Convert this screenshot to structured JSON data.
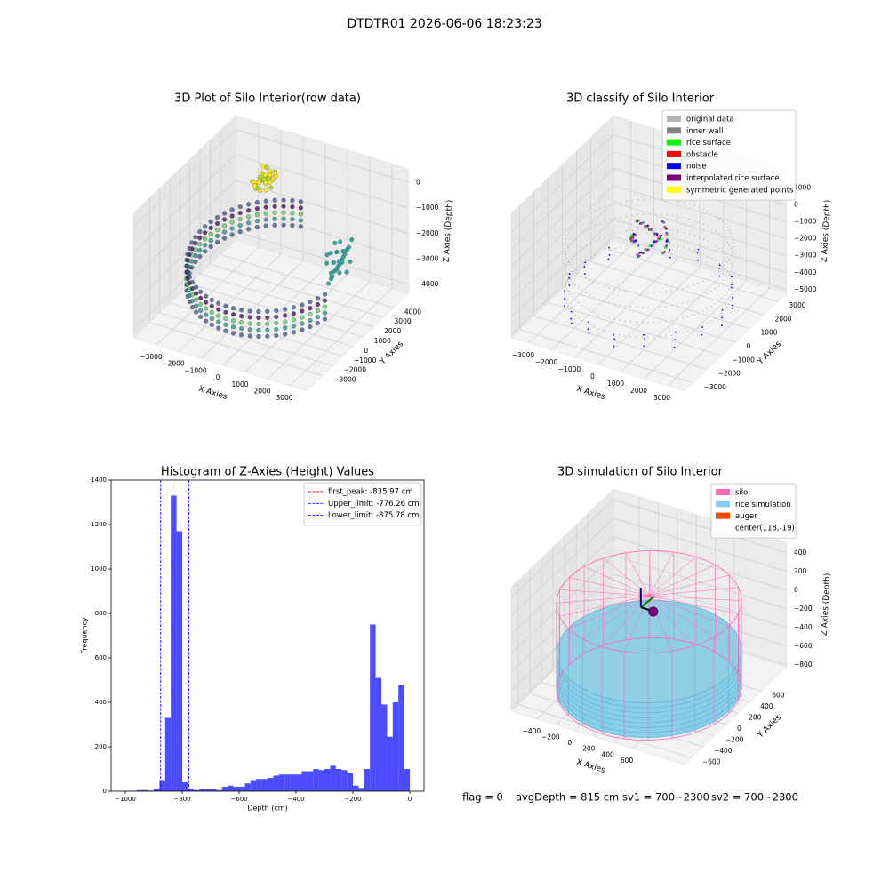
{
  "title": "DTDTR01 2026-06-06 18:23:23",
  "chart_data": [
    {
      "type": "scatter3d",
      "title": "3D Plot of Silo Interior(row data)",
      "x_label": "X Axies",
      "y_label": "Y Axies",
      "z_label": "Z Axies (Depth)",
      "xlim": [
        -4040,
        3760
      ],
      "ylim": [
        -4600,
        5500
      ],
      "zlim": [
        -4340,
        540
      ],
      "xticks": [
        {
          "value": -3000,
          "label": "−3000"
        },
        {
          "value": -2000,
          "label": "−2000"
        },
        {
          "value": -1000,
          "label": "−1000"
        },
        0,
        1000,
        2000,
        3000
      ],
      "yticks": [
        {
          "value": -3000,
          "label": "−3000"
        },
        {
          "value": -2000,
          "label": "−2000"
        },
        {
          "value": -1000,
          "label": "−1000"
        },
        0,
        1000,
        2000,
        3000,
        4000
      ],
      "zticks": [
        {
          "value": -4000,
          "label": "−4000"
        },
        {
          "value": -3000,
          "label": "−3000"
        },
        {
          "value": -2000,
          "label": "−2000"
        },
        {
          "value": -1000,
          "label": "−1000"
        },
        0
      ]
    },
    {
      "type": "scatter3d",
      "title": "3D classify of Silo Interior",
      "x_label": "X Axies",
      "y_label": "Y Axies",
      "z_label": "Z Axies (Depth)",
      "xlim": [
        -3750,
        3750
      ],
      "ylim": [
        -3600,
        3600
      ],
      "zlim": [
        -5220,
        2130
      ],
      "xticks": [
        {
          "value": -3000,
          "label": "−3000"
        },
        {
          "value": -2000,
          "label": "−2000"
        },
        {
          "value": -1000,
          "label": "−1000"
        },
        0,
        1000,
        2000,
        3000
      ],
      "yticks": [
        {
          "value": -3000,
          "label": "−3000"
        },
        {
          "value": -2000,
          "label": "−2000"
        },
        {
          "value": -1000,
          "label": "−1000"
        },
        0,
        1000,
        2000,
        3000
      ],
      "zticks": [
        {
          "value": -5000,
          "label": "−5000"
        },
        {
          "value": -4000,
          "label": "−4000"
        },
        {
          "value": -3000,
          "label": "−3000"
        },
        {
          "value": -2000,
          "label": "−2000"
        },
        {
          "value": -1000,
          "label": "−1000"
        },
        0,
        1000
      ],
      "legend_position": "upper right",
      "legend": [
        {
          "name": "original data",
          "color": "#b3b3b3"
        },
        {
          "name": "inner wall",
          "color": "#808080"
        },
        {
          "name": "rice surface",
          "color": "#00ff00"
        },
        {
          "name": "obstacle",
          "color": "#ff0000"
        },
        {
          "name": "noise",
          "color": "#0000ff"
        },
        {
          "name": "interpolated rice surface",
          "color": "#800080"
        },
        {
          "name": "symmetric generated points",
          "color": "#ffff00"
        }
      ]
    },
    {
      "type": "histogram",
      "title": "Histogram of Z-Axies (Height) Values",
      "x_label": "Depth (cm)",
      "y_label": "Frequency",
      "color": "#0000ff",
      "opacity": 0.7,
      "bins": [
        -1000,
        -980,
        -960,
        -940,
        -920,
        -900,
        -880,
        -860,
        -840,
        -820,
        -800,
        -780,
        -760,
        -740,
        -720,
        -700,
        -680,
        -660,
        -640,
        -620,
        -600,
        -580,
        -560,
        -540,
        -520,
        -500,
        -480,
        -460,
        -440,
        -420,
        -400,
        -380,
        -360,
        -340,
        -320,
        -300,
        -280,
        -260,
        -240,
        -220,
        -200,
        -180,
        -160,
        -140,
        -120,
        -100,
        -80,
        -60,
        -40,
        -20,
        0
      ],
      "counts": [
        2,
        2,
        5,
        5,
        3,
        10,
        50,
        330,
        1330,
        1170,
        40,
        10,
        5,
        8,
        8,
        8,
        5,
        20,
        25,
        20,
        20,
        35,
        50,
        55,
        55,
        60,
        70,
        75,
        75,
        75,
        75,
        90,
        90,
        100,
        95,
        100,
        115,
        100,
        95,
        80,
        25,
        15,
        100,
        750,
        510,
        390,
        245,
        400,
        480,
        100
      ],
      "xlim": [
        -1050,
        50
      ],
      "ylim": [
        0,
        1400
      ],
      "xticks": [
        {
          "value": -1000,
          "label": "−1000"
        },
        {
          "value": -800,
          "label": "−800"
        },
        {
          "value": -600,
          "label": "−600"
        },
        {
          "value": -400,
          "label": "−400"
        },
        {
          "value": -200,
          "label": "−200"
        },
        0
      ],
      "yticks": [
        0,
        200,
        400,
        600,
        800,
        1000,
        1200,
        1400
      ],
      "legend_position": "upper right",
      "lines": [
        {
          "name": "first_peak: -835.97 cm",
          "value": -835.97,
          "color": "#ff0000"
        },
        {
          "name": "Upper_limit: -776.26 cm",
          "value": -776.26,
          "color": "#0000ff"
        },
        {
          "name": "Lower_limit: -875.78 cm",
          "value": -875.78,
          "color": "#0000ff"
        }
      ]
    },
    {
      "type": "scatter3d",
      "title": "3D simulation of Silo Interior",
      "x_label": "X Axies",
      "y_label": "Y Axies",
      "z_label": "Z Axies (Depth)",
      "xlim": [
        -670,
        1150
      ],
      "ylim": [
        -720,
        1040
      ],
      "zlim": [
        -820,
        513
      ],
      "xticks": [
        {
          "value": -400,
          "label": "−400"
        },
        {
          "value": -200,
          "label": "−200"
        },
        0,
        200,
        400,
        600
      ],
      "yticks": [
        {
          "value": -600,
          "label": "−600"
        },
        {
          "value": -400,
          "label": "−400"
        },
        {
          "value": -200,
          "label": "−200"
        },
        0,
        200,
        400,
        600
      ],
      "zticks": [
        {
          "value": -800,
          "label": "−800"
        },
        {
          "value": -600,
          "label": "−600"
        },
        {
          "value": -400,
          "label": "−400"
        },
        {
          "value": -200,
          "label": "−200"
        },
        0,
        200,
        400
      ],
      "legend_position": "upper right",
      "legend": [
        {
          "name": "silo",
          "color": "#ff69b4"
        },
        {
          "name": "rice simulation",
          "color": "#87ceeb"
        },
        {
          "name": "auger",
          "color": "#ff4500"
        },
        {
          "name": "center(118,-19)",
          "color": null
        }
      ]
    }
  ],
  "status": [
    "flag = 0",
    "avgDepth = 815 cm",
    "sv1 = 700~2300",
    "sv2 = 700~2300"
  ]
}
